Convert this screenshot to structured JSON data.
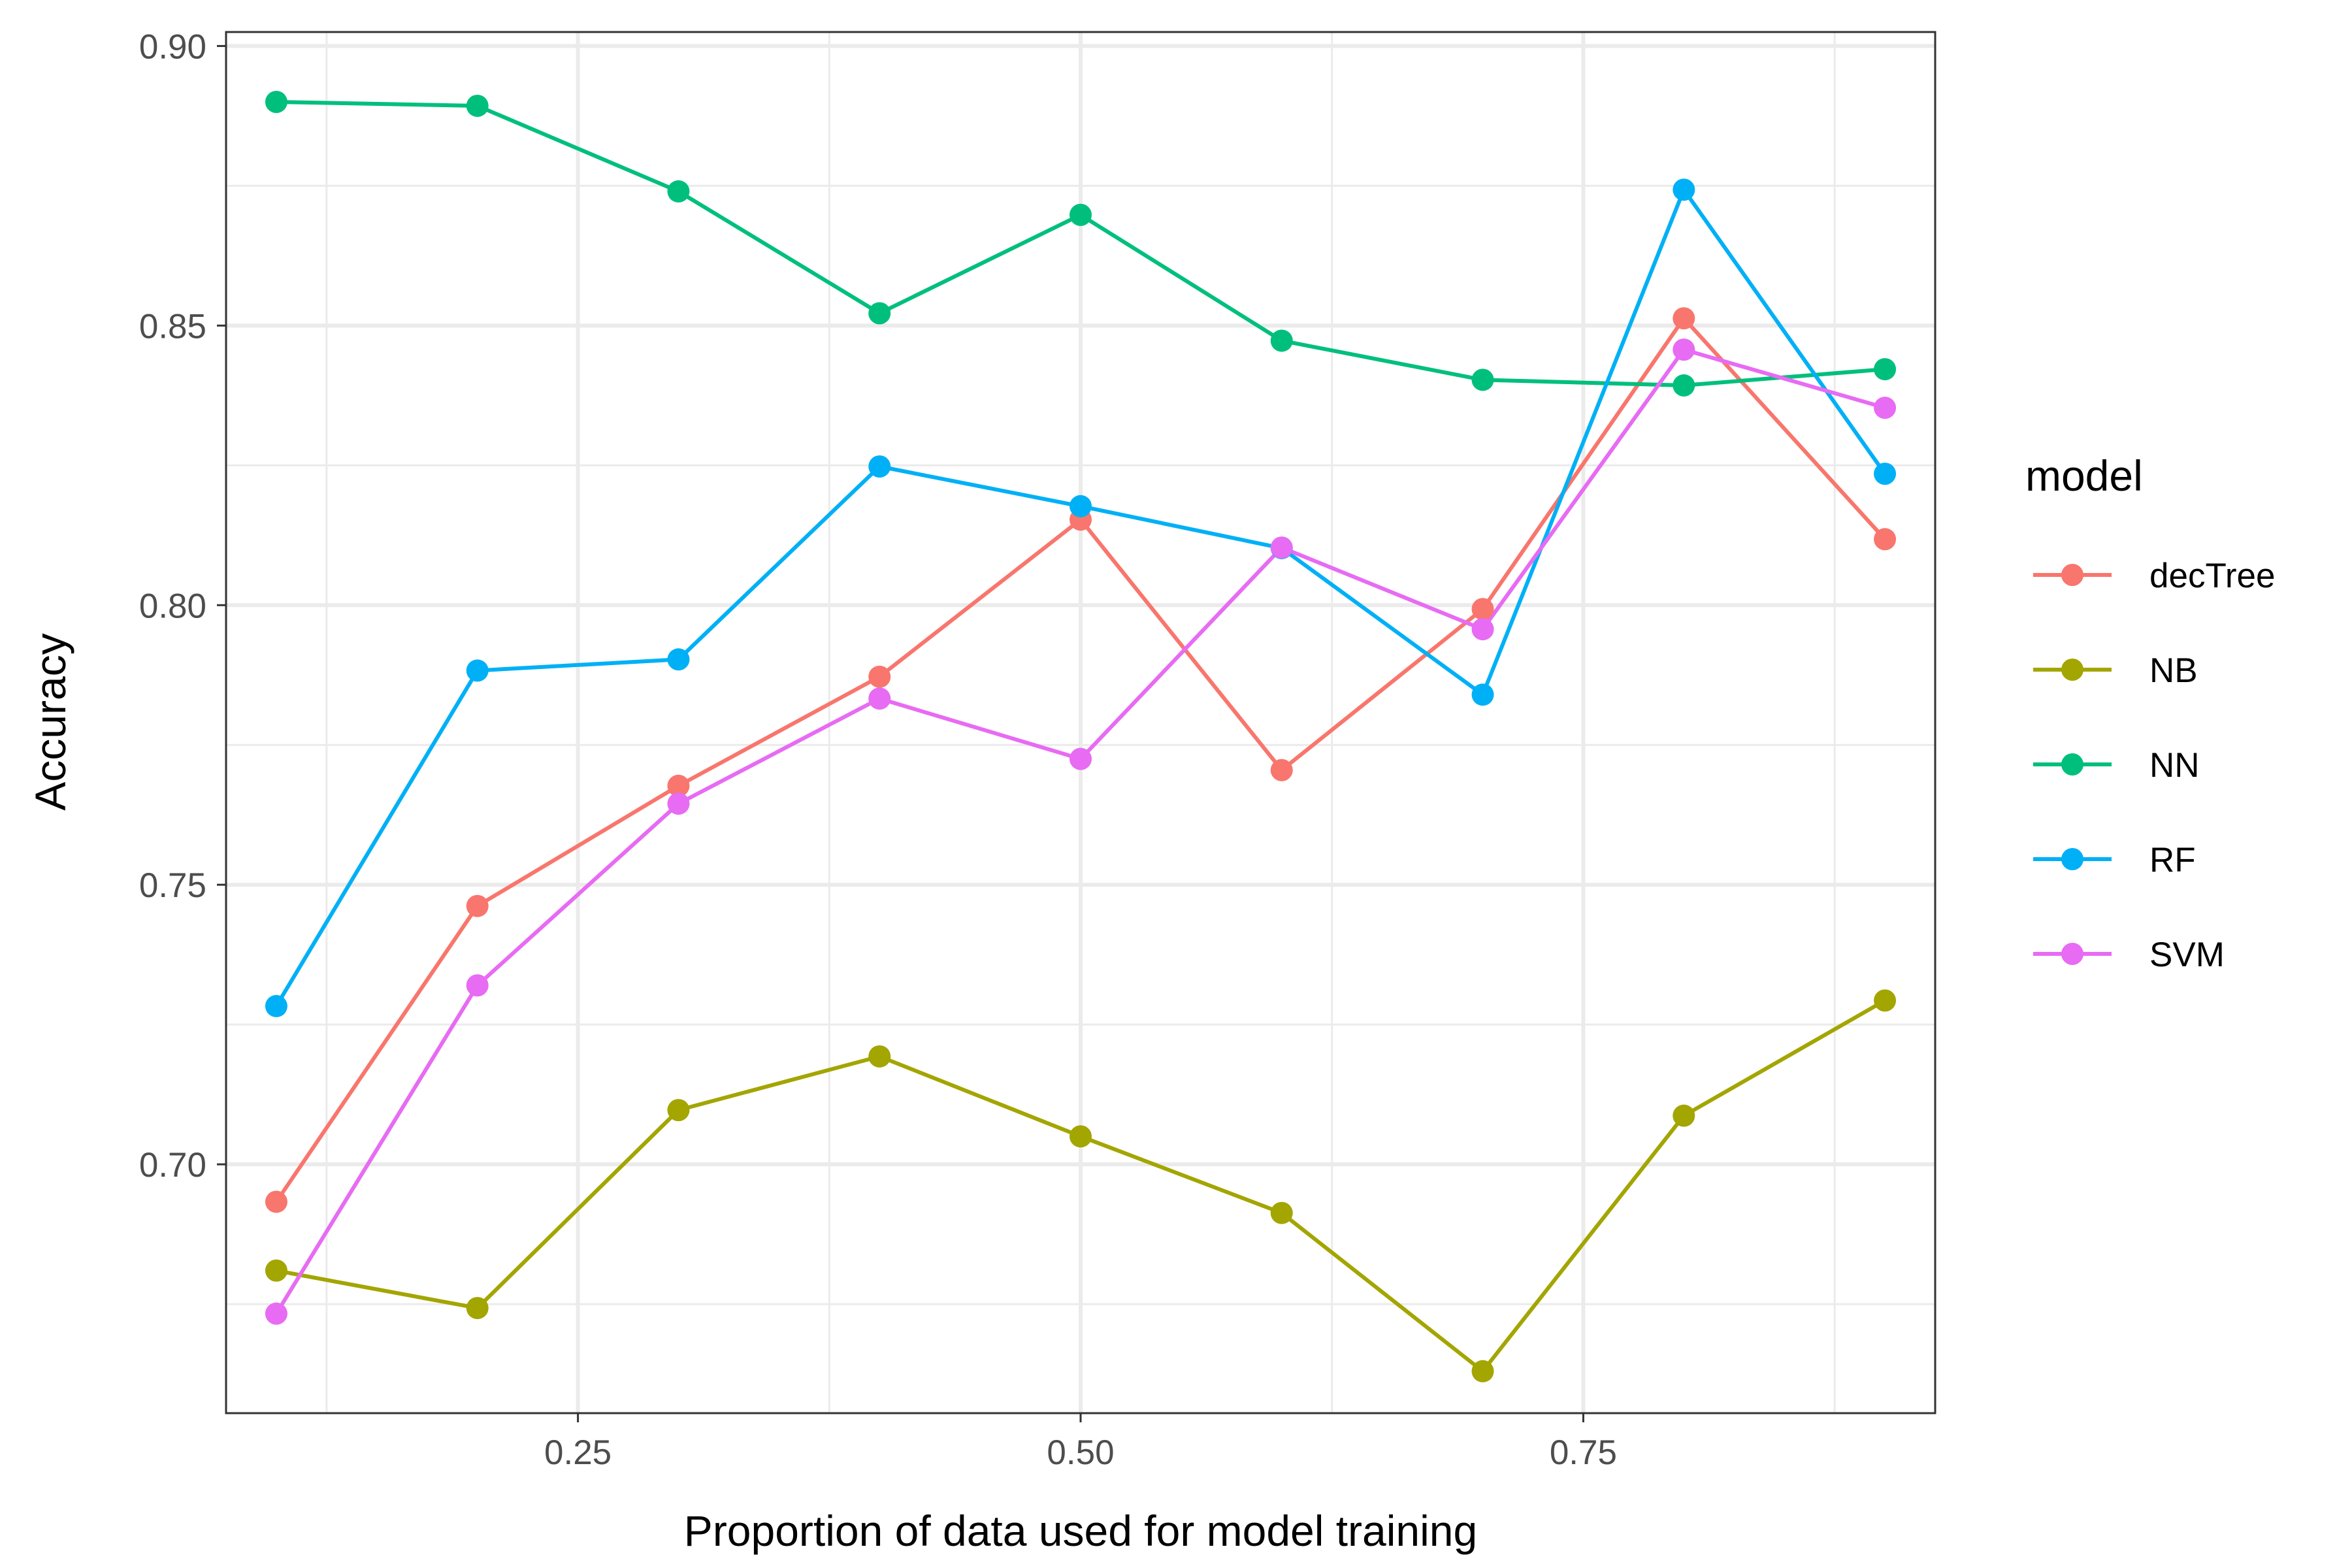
{
  "chart_data": {
    "type": "line",
    "xlabel": "Proportion of data used for model training",
    "ylabel": "Accuracy",
    "xlim": [
      0.075,
      0.925
    ],
    "ylim": [
      0.6555,
      0.9025
    ],
    "x_ticks": [
      0.25,
      0.5,
      0.75
    ],
    "x_tick_labels": [
      "0.25",
      "0.50",
      "0.75"
    ],
    "x_minor_ticks": [
      0.125,
      0.375,
      0.625,
      0.875
    ],
    "y_ticks": [
      0.7,
      0.75,
      0.8,
      0.85,
      0.9
    ],
    "y_tick_labels": [
      "0.70",
      "0.75",
      "0.80",
      "0.85",
      "0.90"
    ],
    "y_minor_ticks": [
      0.675,
      0.725,
      0.775,
      0.825,
      0.875
    ],
    "grid": true,
    "legend_title": "model",
    "legend_position": "right",
    "x": [
      0.1,
      0.2,
      0.3,
      0.4,
      0.5,
      0.6,
      0.7,
      0.8,
      0.9
    ],
    "series": [
      {
        "name": "decTree",
        "color": "#F8766D",
        "values": [
          0.6933,
          0.7462,
          0.7677,
          0.7872,
          0.8153,
          0.7705,
          0.7993,
          0.8513,
          0.8118
        ]
      },
      {
        "name": "NB",
        "color": "#A3A500",
        "values": [
          0.681,
          0.6743,
          0.7097,
          0.7193,
          0.705,
          0.6913,
          0.663,
          0.7087,
          0.7293
        ]
      },
      {
        "name": "NN",
        "color": "#00BF7D",
        "values": [
          0.89,
          0.8893,
          0.874,
          0.8522,
          0.8698,
          0.8473,
          0.8403,
          0.8393,
          0.8422
        ]
      },
      {
        "name": "RF",
        "color": "#00B0F6",
        "values": [
          0.7283,
          0.7883,
          0.7903,
          0.8248,
          0.8177,
          0.8102,
          0.784,
          0.8743,
          0.8235
        ]
      },
      {
        "name": "SVM",
        "color": "#E76BF3",
        "values": [
          0.6733,
          0.732,
          0.7645,
          0.7833,
          0.7725,
          0.8103,
          0.7957,
          0.8457,
          0.8353
        ]
      }
    ]
  }
}
